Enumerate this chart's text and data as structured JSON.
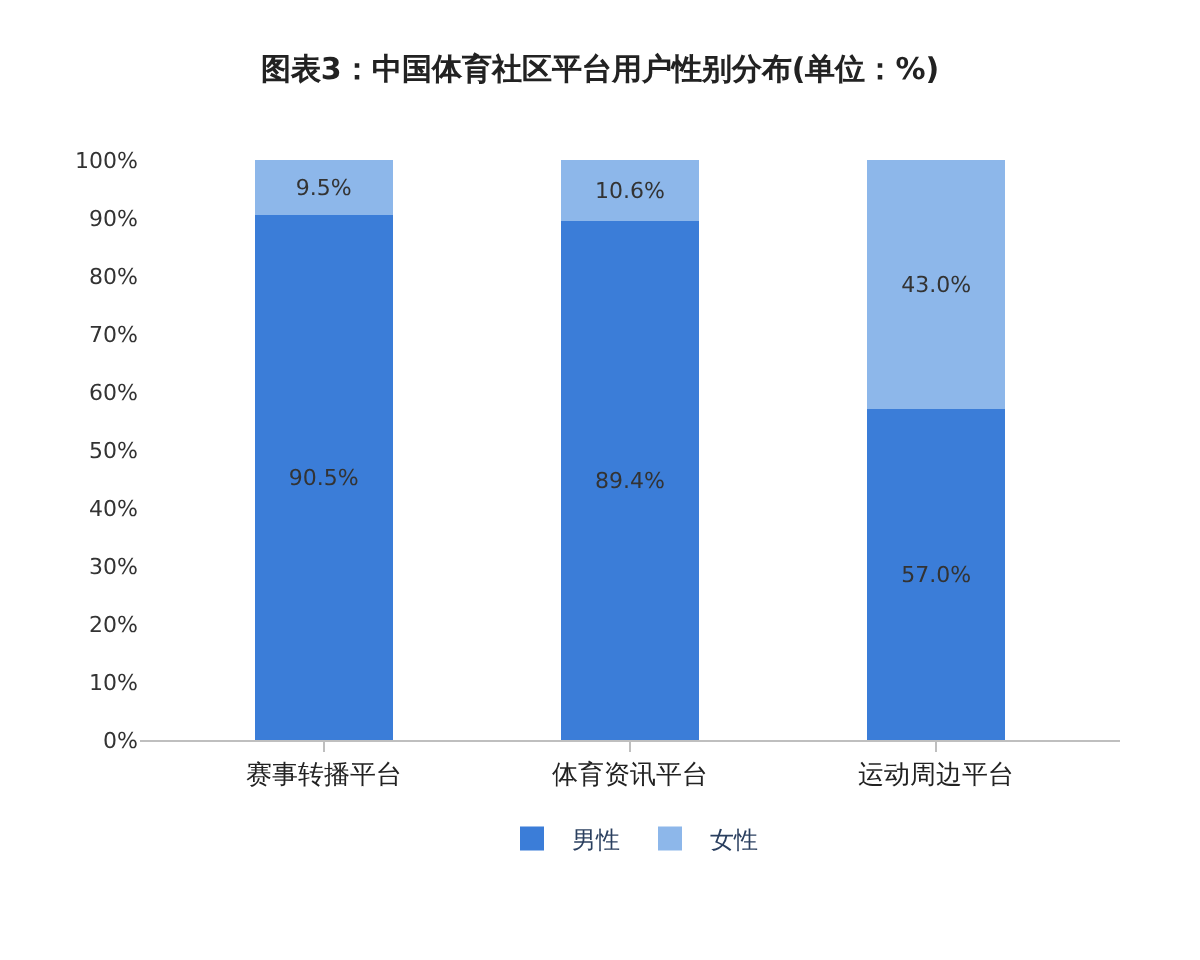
{
  "chart_data": {
    "type": "bar",
    "title": "图表3：中国体育社区平台用户性别分布(单位：%)",
    "categories": [
      "赛事转播平台",
      "体育资讯平台",
      "运动周边平台"
    ],
    "stacked": true,
    "series": [
      {
        "name": "男性",
        "color": "#3b7dd8",
        "values": [
          90.5,
          89.4,
          57.0
        ],
        "value_labels": [
          "90.5%",
          "89.4%",
          "57.0%"
        ]
      },
      {
        "name": "女性",
        "color": "#8db7ea",
        "values": [
          9.5,
          10.6,
          43.0
        ],
        "value_labels": [
          "9.5%",
          "10.6%",
          "43.0%"
        ]
      }
    ],
    "ylim": [
      0,
      100
    ],
    "yticks": [
      {
        "value": 0,
        "label": "0%"
      },
      {
        "value": 10,
        "label": "10%"
      },
      {
        "value": 20,
        "label": "20%"
      },
      {
        "value": 30,
        "label": "30%"
      },
      {
        "value": 40,
        "label": "40%"
      },
      {
        "value": 50,
        "label": "50%"
      },
      {
        "value": 60,
        "label": "60%"
      },
      {
        "value": 70,
        "label": "70%"
      },
      {
        "value": 80,
        "label": "80%"
      },
      {
        "value": 90,
        "label": "90%"
      },
      {
        "value": 100,
        "label": "100%"
      }
    ],
    "legend": "bottom"
  }
}
